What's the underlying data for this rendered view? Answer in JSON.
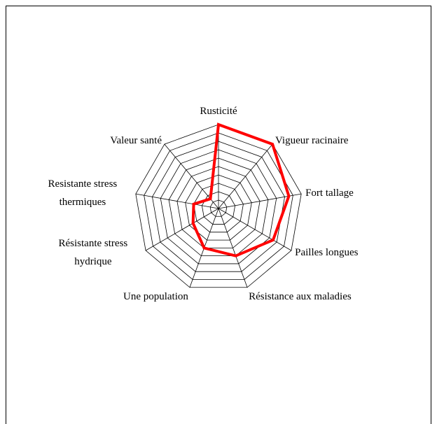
{
  "chart_data": {
    "type": "radar",
    "categories": [
      "Rusticité",
      "Vigueur racinaire",
      "Fort tallage",
      "Pailles longues",
      "Résistance aux maladies",
      "Une population",
      "Résistante stress hydrique",
      "Resistante stress thermiques",
      "Valeur santé"
    ],
    "values": [
      10,
      10,
      8.5,
      7.5,
      6,
      5,
      3.5,
      3,
      1.5
    ],
    "color": "#ff0000",
    "rlim": [
      0,
      10
    ],
    "rticks": [
      1,
      2,
      3,
      4,
      5,
      6,
      7,
      8,
      9,
      10
    ],
    "grid": true
  }
}
